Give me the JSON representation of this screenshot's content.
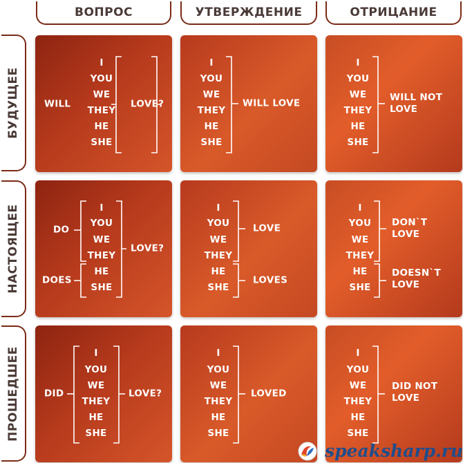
{
  "headers": {
    "question": "ВОПРОС",
    "statement": "УТВЕРЖДЕНИЕ",
    "negation": "ОТРИЦАНИЕ"
  },
  "rows": {
    "future": "БУДУЩЕЕ",
    "present": "НАСТОЯЩЕЕ",
    "past": "ПРОШЕДШЕЕ"
  },
  "pronouns": [
    "I",
    "YOU",
    "WE",
    "THEY",
    "HE",
    "SHE"
  ],
  "future": {
    "question_aux": "WILL",
    "question_verb": "LOVE?",
    "statement_verb": "WILL LOVE",
    "negation_verb": "WILL NOT\nLOVE"
  },
  "present": {
    "question_aux_1": "DO",
    "question_aux_2": "DOES",
    "question_verb": "LOVE?",
    "statement_verb_1": "LOVE",
    "statement_verb_2": "LOVES",
    "negation_verb_1": "DON`T\nLOVE",
    "negation_verb_2": "DOESN`T\nLOVE"
  },
  "past": {
    "question_aux": "DID",
    "question_verb": "LOVE?",
    "statement_verb": "LOVED",
    "negation_verb": "DID NOT\nLOVE"
  },
  "footer": {
    "site": "speaksharp.ru"
  },
  "colors": {
    "frame": "#7a2a16",
    "header_text": "#4a3a36",
    "cell_dark": "#8e2411",
    "cell_light": "#e25d2a",
    "site_text": "#1f4d8c"
  }
}
